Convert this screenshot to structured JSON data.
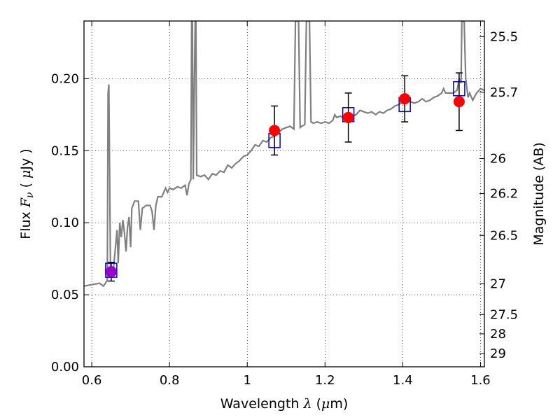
{
  "chart_data": {
    "type": "scatter",
    "xlabel": {
      "prefix": "Wavelength ",
      "symbol": "λ",
      "unit_open": " (",
      "unit_mu": "μ",
      "unit_rest": "m)"
    },
    "ylabel": {
      "prefix": "Flux ",
      "symbol": "F",
      "subscript": "ν",
      "unit_open": " ( ",
      "unit_mu": "μ",
      "unit_rest": "Jy )"
    },
    "y2label": "Magnitude (AB)",
    "xlim": [
      0.58,
      1.61
    ],
    "ylim": [
      0.0,
      0.24
    ],
    "grid": true,
    "x_ticks": [
      {
        "value": 0.6,
        "label": "0.6"
      },
      {
        "value": 0.8,
        "label": "0.8"
      },
      {
        "value": 1.0,
        "label": "1"
      },
      {
        "value": 1.2,
        "label": "1.2"
      },
      {
        "value": 1.4,
        "label": "1.4"
      },
      {
        "value": 1.6,
        "label": "1.6"
      }
    ],
    "y_ticks": [
      {
        "value": 0.0,
        "label": "0.00"
      },
      {
        "value": 0.05,
        "label": "0.05"
      },
      {
        "value": 0.1,
        "label": "0.10"
      },
      {
        "value": 0.15,
        "label": "0.15"
      },
      {
        "value": 0.2,
        "label": "0.20"
      }
    ],
    "y2_ticks": [
      {
        "value": 25.5,
        "label": "25.5"
      },
      {
        "value": 25.7,
        "label": "25.7"
      },
      {
        "value": 26.0,
        "label": "26"
      },
      {
        "value": 26.2,
        "label": "26.2"
      },
      {
        "value": 26.5,
        "label": "26.5"
      },
      {
        "value": 27.0,
        "label": "27"
      },
      {
        "value": 27.5,
        "label": "27.5"
      },
      {
        "value": 28.0,
        "label": "28"
      },
      {
        "value": 29.0,
        "label": "29"
      }
    ],
    "series": [
      {
        "kind": "model-spectrum",
        "color": "#808080",
        "points": [
          [
            0.58,
            0.056
          ],
          [
            0.6,
            0.057
          ],
          [
            0.62,
            0.058
          ],
          [
            0.63,
            0.056
          ],
          [
            0.635,
            0.058
          ],
          [
            0.64,
            0.06
          ],
          [
            0.642,
            0.19
          ],
          [
            0.644,
            0.196
          ],
          [
            0.646,
            0.13
          ],
          [
            0.648,
            0.07
          ],
          [
            0.652,
            0.062
          ],
          [
            0.655,
            0.066
          ],
          [
            0.66,
            0.08
          ],
          [
            0.665,
            0.095
          ],
          [
            0.668,
            0.072
          ],
          [
            0.672,
            0.1
          ],
          [
            0.676,
            0.09
          ],
          [
            0.68,
            0.102
          ],
          [
            0.684,
            0.093
          ],
          [
            0.688,
            0.08
          ],
          [
            0.692,
            0.097
          ],
          [
            0.696,
            0.104
          ],
          [
            0.7,
            0.083
          ],
          [
            0.703,
            0.11
          ],
          [
            0.71,
            0.115
          ],
          [
            0.72,
            0.115
          ],
          [
            0.725,
            0.095
          ],
          [
            0.73,
            0.11
          ],
          [
            0.74,
            0.112
          ],
          [
            0.75,
            0.112
          ],
          [
            0.755,
            0.108
          ],
          [
            0.76,
            0.095
          ],
          [
            0.765,
            0.112
          ],
          [
            0.77,
            0.118
          ],
          [
            0.78,
            0.118
          ],
          [
            0.79,
            0.124
          ],
          [
            0.795,
            0.121
          ],
          [
            0.8,
            0.124
          ],
          [
            0.81,
            0.123
          ],
          [
            0.82,
            0.125
          ],
          [
            0.83,
            0.124
          ],
          [
            0.84,
            0.126
          ],
          [
            0.845,
            0.119
          ],
          [
            0.85,
            0.127
          ],
          [
            0.855,
            0.13
          ],
          [
            0.857,
            0.24
          ],
          [
            0.859,
            0.24
          ],
          [
            0.861,
            0.13
          ],
          [
            0.866,
            0.24
          ],
          [
            0.868,
            0.24
          ],
          [
            0.87,
            0.133
          ],
          [
            0.88,
            0.132
          ],
          [
            0.89,
            0.133
          ],
          [
            0.9,
            0.13
          ],
          [
            0.91,
            0.134
          ],
          [
            0.92,
            0.133
          ],
          [
            0.93,
            0.136
          ],
          [
            0.94,
            0.135
          ],
          [
            0.95,
            0.14
          ],
          [
            0.96,
            0.138
          ],
          [
            0.97,
            0.141
          ],
          [
            0.98,
            0.143
          ],
          [
            0.99,
            0.146
          ],
          [
            1.0,
            0.147
          ],
          [
            1.01,
            0.15
          ],
          [
            1.02,
            0.154
          ],
          [
            1.03,
            0.153
          ],
          [
            1.04,
            0.157
          ],
          [
            1.05,
            0.156
          ],
          [
            1.06,
            0.159
          ],
          [
            1.07,
            0.16
          ],
          [
            1.08,
            0.162
          ],
          [
            1.09,
            0.165
          ],
          [
            1.1,
            0.166
          ],
          [
            1.11,
            0.167
          ],
          [
            1.12,
            0.165
          ],
          [
            1.124,
            0.24
          ],
          [
            1.132,
            0.24
          ],
          [
            1.136,
            0.166
          ],
          [
            1.14,
            0.167
          ],
          [
            1.148,
            0.168
          ],
          [
            1.152,
            0.24
          ],
          [
            1.16,
            0.24
          ],
          [
            1.164,
            0.17
          ],
          [
            1.17,
            0.169
          ],
          [
            1.18,
            0.17
          ],
          [
            1.19,
            0.169
          ],
          [
            1.2,
            0.17
          ],
          [
            1.21,
            0.169
          ],
          [
            1.22,
            0.171
          ],
          [
            1.225,
            0.175
          ],
          [
            1.23,
            0.173
          ],
          [
            1.24,
            0.174
          ],
          [
            1.25,
            0.172
          ],
          [
            1.255,
            0.17
          ],
          [
            1.26,
            0.172
          ],
          [
            1.27,
            0.174
          ],
          [
            1.28,
            0.175
          ],
          [
            1.29,
            0.178
          ],
          [
            1.3,
            0.177
          ],
          [
            1.31,
            0.176
          ],
          [
            1.32,
            0.177
          ],
          [
            1.33,
            0.175
          ],
          [
            1.34,
            0.177
          ],
          [
            1.35,
            0.176
          ],
          [
            1.36,
            0.178
          ],
          [
            1.37,
            0.179
          ],
          [
            1.38,
            0.181
          ],
          [
            1.39,
            0.182
          ],
          [
            1.4,
            0.184
          ],
          [
            1.41,
            0.186
          ],
          [
            1.42,
            0.184
          ],
          [
            1.43,
            0.183
          ],
          [
            1.44,
            0.184
          ],
          [
            1.45,
            0.186
          ],
          [
            1.46,
            0.184
          ],
          [
            1.47,
            0.185
          ],
          [
            1.48,
            0.187
          ],
          [
            1.49,
            0.188
          ],
          [
            1.5,
            0.19
          ],
          [
            1.505,
            0.193
          ],
          [
            1.51,
            0.19
          ],
          [
            1.52,
            0.19
          ],
          [
            1.53,
            0.19
          ],
          [
            1.54,
            0.192
          ],
          [
            1.545,
            0.2
          ],
          [
            1.55,
            0.197
          ],
          [
            1.552,
            0.24
          ],
          [
            1.558,
            0.24
          ],
          [
            1.562,
            0.2
          ],
          [
            1.568,
            0.187
          ],
          [
            1.572,
            0.19
          ],
          [
            1.58,
            0.185
          ],
          [
            1.59,
            0.19
          ],
          [
            1.6,
            0.193
          ],
          [
            1.61,
            0.192
          ]
        ]
      },
      {
        "kind": "model-photometry",
        "marker": "open-square",
        "color": "#0000cc",
        "points": [
          [
            0.65,
            0.067
          ],
          [
            1.07,
            0.157
          ],
          [
            1.26,
            0.175
          ],
          [
            1.405,
            0.182
          ],
          [
            1.545,
            0.193
          ]
        ]
      },
      {
        "kind": "observed-photometry",
        "marker": "filled-circle",
        "color": "#ff0000",
        "points": [
          {
            "x": 0.65,
            "y": 0.066,
            "err": 0.0065,
            "color": "#9900cc"
          },
          {
            "x": 1.07,
            "y": 0.164,
            "err": 0.017
          },
          {
            "x": 1.26,
            "y": 0.173,
            "err": 0.017
          },
          {
            "x": 1.405,
            "y": 0.186,
            "err": 0.016
          },
          {
            "x": 1.545,
            "y": 0.184,
            "err": 0.02
          }
        ]
      }
    ]
  }
}
